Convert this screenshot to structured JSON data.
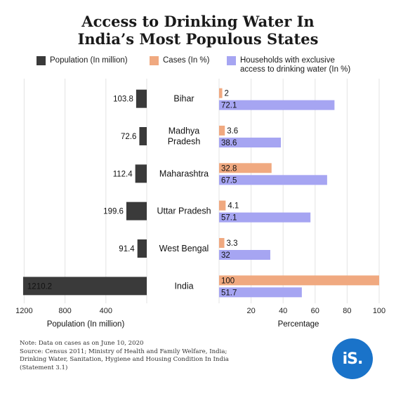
{
  "title_line1": "Access to Drinking Water In",
  "title_line2": "India’s Most Populous States",
  "legend": {
    "population": "Population (In million)",
    "cases": "Cases (In %)",
    "households_line1": "Households with exclusive",
    "households_line2": "access to drinking water (In %)"
  },
  "colors": {
    "population": "#3a3a3a",
    "cases": "#f0a980",
    "households": "#a6a5f2",
    "grid": "#e3e3e3",
    "logo": "#1a73c9"
  },
  "note": {
    "line1": "Note: Data on cases as on June 10, 2020",
    "line2": "Source: Census 2011; Ministry of Health and Family Welfare, India;",
    "line3": "Drinking Water, Sanitation, Hygiene and Housing Condition In India",
    "line4": "(Statement 3.1)"
  },
  "logo_text": "iS.",
  "chart_data": {
    "type": "bar",
    "orientation": "horizontal",
    "categories": [
      "Bihar",
      "Madhya Pradesh",
      "Maharashtra",
      "Uttar Pradesh",
      "West Bengal",
      "India"
    ],
    "category_lines": [
      [
        "Bihar"
      ],
      [
        "Madhya",
        "Pradesh"
      ],
      [
        "Maharashtra"
      ],
      [
        "Uttar Pradesh"
      ],
      [
        "West Bengal"
      ],
      [
        "India"
      ]
    ],
    "left_panel": {
      "series": [
        {
          "name": "Population (In million)",
          "values": [
            103.8,
            72.6,
            112.4,
            199.6,
            91.4,
            1210.2
          ]
        }
      ],
      "value_labels": [
        "103.8",
        "72.6",
        "112.4",
        "199.6",
        "91.4",
        "1210.2"
      ],
      "xlabel": "Population (In million)",
      "xlim": [
        0,
        1300
      ],
      "reversed": true,
      "ticks": [
        1200,
        800,
        400
      ]
    },
    "right_panel": {
      "series": [
        {
          "name": "Cases (In %)",
          "values": [
            2,
            3.6,
            32.8,
            4.1,
            3.3,
            100
          ],
          "labels": [
            "2",
            "3.6",
            "32.8",
            "4.1",
            "3.3",
            "100"
          ]
        },
        {
          "name": "Households with exclusive access to drinking water (In %)",
          "values": [
            72.1,
            38.6,
            67.5,
            57.1,
            32,
            51.7
          ],
          "labels": [
            "72.1",
            "38.6",
            "67.5",
            "57.1",
            "32",
            "51.7"
          ]
        }
      ],
      "xlabel": "Percentage",
      "xlim": [
        0,
        100
      ],
      "ticks": [
        20,
        40,
        60,
        80,
        100
      ]
    },
    "grid": true,
    "legend_position": "top"
  }
}
